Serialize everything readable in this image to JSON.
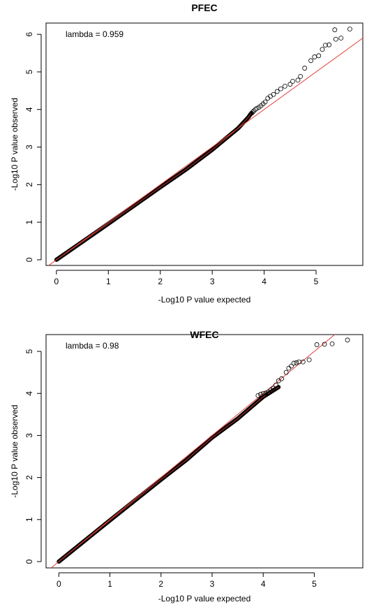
{
  "chart_data": [
    {
      "type": "scatter",
      "title": "PFEC",
      "xlabel": "-Log10 P value expected",
      "ylabel": "-Log10 P value observed",
      "annotation": "lambda = 0.959",
      "xlim": [
        -0.2,
        5.9
      ],
      "ylim": [
        -0.15,
        6.3
      ],
      "xticks": [
        "0",
        "1",
        "2",
        "3",
        "4",
        "5"
      ],
      "yticks": [
        "0",
        "1",
        "2",
        "3",
        "4",
        "5",
        "6"
      ],
      "line_color": "#e0403a",
      "point_color": "#000000",
      "bulk_curve": [
        [
          0,
          0
        ],
        [
          1,
          0.96
        ],
        [
          2,
          1.93
        ],
        [
          2.5,
          2.41
        ],
        [
          3,
          2.93
        ],
        [
          3.5,
          3.5
        ],
        [
          3.7,
          3.8
        ],
        [
          3.75,
          3.9
        ]
      ],
      "tail_points": [
        [
          3.76,
          3.9
        ],
        [
          3.78,
          3.93
        ],
        [
          3.8,
          3.96
        ],
        [
          3.83,
          4.0
        ],
        [
          3.86,
          4.03
        ],
        [
          3.9,
          4.06
        ],
        [
          3.94,
          4.1
        ],
        [
          3.98,
          4.15
        ],
        [
          4.02,
          4.2
        ],
        [
          4.07,
          4.3
        ],
        [
          4.12,
          4.35
        ],
        [
          4.18,
          4.4
        ],
        [
          4.25,
          4.48
        ],
        [
          4.32,
          4.55
        ],
        [
          4.4,
          4.62
        ],
        [
          4.5,
          4.67
        ],
        [
          4.55,
          4.75
        ],
        [
          4.65,
          4.78
        ],
        [
          4.7,
          4.88
        ],
        [
          4.78,
          5.1
        ],
        [
          4.9,
          5.3
        ],
        [
          4.97,
          5.4
        ],
        [
          5.05,
          5.43
        ],
        [
          5.12,
          5.6
        ],
        [
          5.18,
          5.71
        ],
        [
          5.25,
          5.72
        ],
        [
          5.38,
          5.87
        ],
        [
          5.48,
          5.9
        ],
        [
          5.36,
          6.12
        ],
        [
          5.65,
          6.14
        ]
      ]
    },
    {
      "type": "scatter",
      "title": "WFEC",
      "xlabel": "-Log10 P value expected",
      "ylabel": "-Log10 P value observed",
      "annotation": "lambda = 0.98",
      "xlim": [
        -0.25,
        5.95
      ],
      "ylim": [
        -0.15,
        5.4
      ],
      "xticks": [
        "0",
        "1",
        "2",
        "3",
        "4",
        "5"
      ],
      "yticks": [
        "0",
        "1",
        "2",
        "3",
        "4",
        "5"
      ],
      "line_color": "#e0403a",
      "point_color": "#000000",
      "bulk_curve": [
        [
          0,
          0
        ],
        [
          1,
          0.98
        ],
        [
          2,
          1.95
        ],
        [
          2.5,
          2.42
        ],
        [
          3,
          2.95
        ],
        [
          3.5,
          3.4
        ],
        [
          4.0,
          3.92
        ],
        [
          4.3,
          4.15
        ]
      ],
      "tail_points": [
        [
          3.9,
          3.95
        ],
        [
          3.95,
          3.98
        ],
        [
          4.0,
          4.0
        ],
        [
          4.05,
          4.01
        ],
        [
          4.1,
          4.03
        ],
        [
          4.15,
          4.08
        ],
        [
          4.2,
          4.12
        ],
        [
          4.25,
          4.2
        ],
        [
          4.3,
          4.3
        ],
        [
          4.36,
          4.35
        ],
        [
          4.45,
          4.5
        ],
        [
          4.5,
          4.6
        ],
        [
          4.55,
          4.65
        ],
        [
          4.6,
          4.72
        ],
        [
          4.65,
          4.73
        ],
        [
          4.7,
          4.75
        ],
        [
          4.78,
          4.75
        ],
        [
          4.9,
          4.8
        ],
        [
          5.05,
          5.16
        ],
        [
          5.2,
          5.17
        ],
        [
          5.35,
          5.18
        ],
        [
          5.65,
          5.27
        ]
      ]
    }
  ]
}
